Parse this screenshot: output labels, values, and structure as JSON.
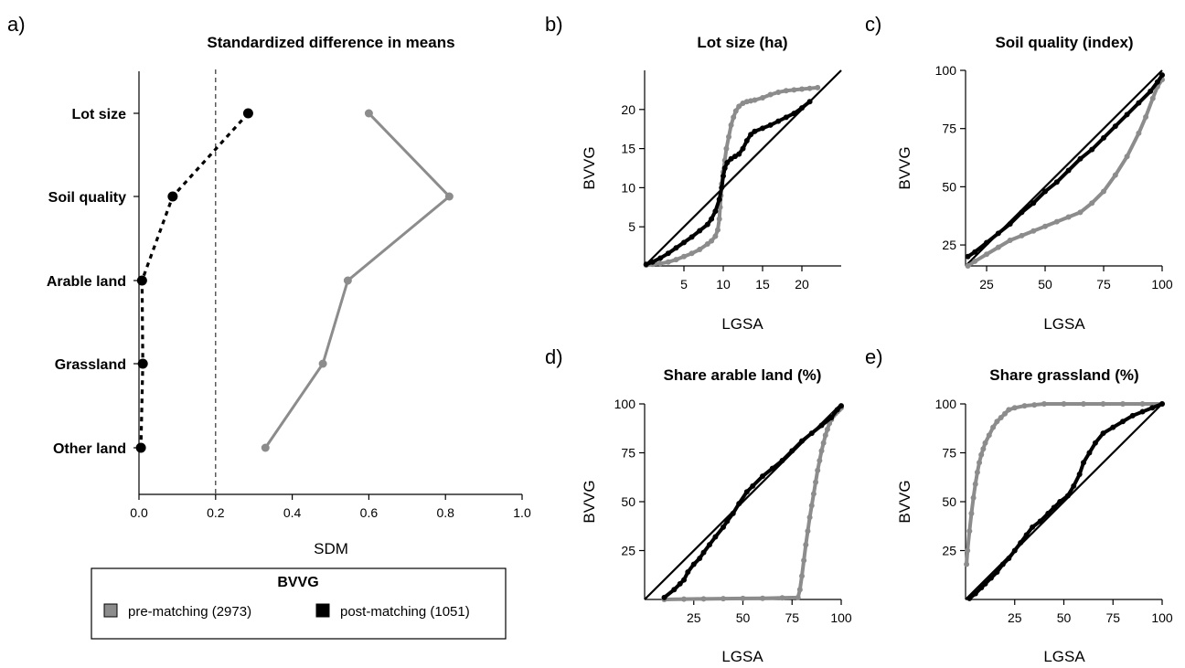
{
  "colors": {
    "pre": "#8c8c8c",
    "post": "#000000"
  },
  "chart_data": [
    {
      "id": "a",
      "panel_label": "a)",
      "type": "line",
      "title": "Standardized difference in means",
      "xlabel": "SDM",
      "ylabel": "",
      "xlim": [
        0,
        1
      ],
      "xticks": [
        0.0,
        0.2,
        0.4,
        0.6,
        0.8,
        1.0
      ],
      "xtick_labels": [
        "0.0",
        "0.2",
        "0.4",
        "0.6",
        "0.8",
        "1.0"
      ],
      "categories": [
        "Lot size",
        "Soil quality",
        "Arable land",
        "Grassland",
        "Other land"
      ],
      "reference_line": 0.2,
      "series": [
        {
          "key": "pre",
          "values": [
            0.6,
            0.81,
            0.545,
            0.48,
            0.33
          ]
        },
        {
          "key": "post",
          "values": [
            0.285,
            0.088,
            0.008,
            0.01,
            0.005
          ]
        }
      ]
    },
    {
      "id": "b",
      "panel_label": "b)",
      "type": "scatter",
      "title": "Lot size (ha)",
      "xlabel": "LGSA",
      "ylabel": "BVVG",
      "xlim": [
        0,
        25
      ],
      "ylim": [
        0,
        25
      ],
      "xticks": [
        5,
        10,
        15,
        20
      ],
      "yticks": [
        5,
        10,
        15,
        20
      ],
      "diagonal": [
        0,
        25
      ],
      "series": [
        {
          "key": "pre",
          "points": [
            [
              0.2,
              0.1
            ],
            [
              1,
              0.2
            ],
            [
              2,
              0.3
            ],
            [
              3,
              0.5
            ],
            [
              4,
              0.8
            ],
            [
              5,
              1.2
            ],
            [
              6,
              1.6
            ],
            [
              7,
              2.1
            ],
            [
              8,
              2.8
            ],
            [
              8.5,
              3.2
            ],
            [
              9,
              3.8
            ],
            [
              9.3,
              4.6
            ],
            [
              9.5,
              6
            ],
            [
              9.6,
              7.5
            ],
            [
              9.7,
              9
            ],
            [
              9.8,
              10.5
            ],
            [
              10,
              12
            ],
            [
              10.2,
              13.5
            ],
            [
              10.4,
              15
            ],
            [
              10.7,
              16.5
            ],
            [
              11,
              18
            ],
            [
              11.3,
              19
            ],
            [
              11.6,
              19.8
            ],
            [
              12,
              20.4
            ],
            [
              12.5,
              20.8
            ],
            [
              13,
              21
            ],
            [
              13.5,
              21.1
            ],
            [
              14,
              21.2
            ],
            [
              15,
              21.5
            ],
            [
              16,
              21.9
            ],
            [
              17,
              22.2
            ],
            [
              18,
              22.4
            ],
            [
              19,
              22.5
            ],
            [
              20,
              22.6
            ],
            [
              21,
              22.7
            ],
            [
              22,
              22.8
            ]
          ]
        },
        {
          "key": "post",
          "points": [
            [
              0.2,
              0.2
            ],
            [
              1,
              0.5
            ],
            [
              2,
              1
            ],
            [
              3,
              1.6
            ],
            [
              4,
              2.3
            ],
            [
              5,
              3
            ],
            [
              6,
              3.7
            ],
            [
              7,
              4.5
            ],
            [
              8,
              5.3
            ],
            [
              8.5,
              6
            ],
            [
              9,
              7
            ],
            [
              9.5,
              8.5
            ],
            [
              9.8,
              10
            ],
            [
              10,
              11.5
            ],
            [
              10.2,
              12.5
            ],
            [
              10.5,
              13.2
            ],
            [
              11,
              13.7
            ],
            [
              11.5,
              14
            ],
            [
              12,
              14.3
            ],
            [
              12.5,
              15
            ],
            [
              13,
              16
            ],
            [
              13.5,
              16.8
            ],
            [
              14,
              17.2
            ],
            [
              15,
              17.6
            ],
            [
              16,
              18
            ],
            [
              17,
              18.5
            ],
            [
              18,
              19
            ],
            [
              19,
              19.5
            ],
            [
              20,
              20.2
            ],
            [
              21,
              21
            ]
          ]
        }
      ]
    },
    {
      "id": "c",
      "panel_label": "c)",
      "type": "scatter",
      "title": "Soil quality (index)",
      "xlabel": "LGSA",
      "ylabel": "BVVG",
      "xlim": [
        16,
        100
      ],
      "ylim": [
        16,
        100
      ],
      "xticks": [
        25,
        50,
        75,
        100
      ],
      "yticks": [
        25,
        50,
        75,
        100
      ],
      "diagonal": [
        16,
        100
      ],
      "series": [
        {
          "key": "pre",
          "points": [
            [
              17,
              16
            ],
            [
              20,
              18
            ],
            [
              25,
              21
            ],
            [
              30,
              24
            ],
            [
              35,
              27
            ],
            [
              40,
              29
            ],
            [
              45,
              31
            ],
            [
              50,
              33
            ],
            [
              55,
              35
            ],
            [
              60,
              37
            ],
            [
              65,
              39
            ],
            [
              70,
              43
            ],
            [
              75,
              48
            ],
            [
              80,
              55
            ],
            [
              85,
              63
            ],
            [
              90,
              73
            ],
            [
              93,
              80
            ],
            [
              96,
              88
            ],
            [
              98,
              93
            ],
            [
              100,
              96
            ]
          ]
        },
        {
          "key": "post",
          "points": [
            [
              17,
              20
            ],
            [
              20,
              22
            ],
            [
              25,
              26
            ],
            [
              30,
              30
            ],
            [
              35,
              34
            ],
            [
              40,
              39
            ],
            [
              45,
              43
            ],
            [
              50,
              48
            ],
            [
              55,
              52
            ],
            [
              60,
              57
            ],
            [
              65,
              62
            ],
            [
              70,
              66
            ],
            [
              75,
              71
            ],
            [
              80,
              76
            ],
            [
              85,
              81
            ],
            [
              90,
              86
            ],
            [
              95,
              91
            ],
            [
              98,
              95
            ],
            [
              100,
              98
            ]
          ]
        }
      ]
    },
    {
      "id": "d",
      "panel_label": "d)",
      "type": "scatter",
      "title": "Share arable land (%)",
      "xlabel": "LGSA",
      "ylabel": "BVVG",
      "xlim": [
        0,
        100
      ],
      "ylim": [
        0,
        100
      ],
      "xticks": [
        25,
        50,
        75,
        100
      ],
      "yticks": [
        25,
        50,
        75,
        100
      ],
      "diagonal": [
        0,
        100
      ],
      "series": [
        {
          "key": "pre",
          "points": [
            [
              10,
              0
            ],
            [
              20,
              0.2
            ],
            [
              30,
              0.3
            ],
            [
              40,
              0.4
            ],
            [
              50,
              0.5
            ],
            [
              60,
              0.6
            ],
            [
              70,
              0.8
            ],
            [
              78,
              1
            ],
            [
              79,
              5
            ],
            [
              80,
              12
            ],
            [
              81,
              20
            ],
            [
              82,
              28
            ],
            [
              83,
              35
            ],
            [
              84,
              42
            ],
            [
              85,
              48
            ],
            [
              86,
              54
            ],
            [
              87,
              60
            ],
            [
              88,
              66
            ],
            [
              89,
              71
            ],
            [
              90,
              76
            ],
            [
              91,
              80
            ],
            [
              92,
              84
            ],
            [
              93,
              87
            ],
            [
              94,
              90
            ],
            [
              95,
              92
            ],
            [
              96,
              94
            ],
            [
              97,
              95
            ],
            [
              98,
              96
            ],
            [
              99,
              97
            ],
            [
              100,
              98
            ]
          ]
        },
        {
          "key": "post",
          "points": [
            [
              10,
              1
            ],
            [
              15,
              5
            ],
            [
              18,
              8
            ],
            [
              20,
              10
            ],
            [
              22,
              14
            ],
            [
              25,
              18
            ],
            [
              28,
              21
            ],
            [
              30,
              24
            ],
            [
              33,
              28
            ],
            [
              36,
              32
            ],
            [
              40,
              37
            ],
            [
              42,
              40
            ],
            [
              45,
              44
            ],
            [
              48,
              49
            ],
            [
              52,
              55
            ],
            [
              55,
              58
            ],
            [
              60,
              63
            ],
            [
              65,
              67
            ],
            [
              70,
              71
            ],
            [
              75,
              76
            ],
            [
              80,
              81
            ],
            [
              85,
              85
            ],
            [
              90,
              89
            ],
            [
              95,
              93
            ],
            [
              98,
              97
            ],
            [
              100,
              99
            ]
          ]
        }
      ]
    },
    {
      "id": "e",
      "panel_label": "e)",
      "type": "scatter",
      "title": "Share grassland (%)",
      "xlabel": "LGSA",
      "ylabel": "BVVG",
      "xlim": [
        0,
        100
      ],
      "ylim": [
        0,
        100
      ],
      "xticks": [
        25,
        50,
        75,
        100
      ],
      "yticks": [
        25,
        50,
        75,
        100
      ],
      "diagonal": [
        0,
        100
      ],
      "series": [
        {
          "key": "pre",
          "points": [
            [
              0.5,
              18
            ],
            [
              1,
              25
            ],
            [
              2,
              35
            ],
            [
              3,
              44
            ],
            [
              4,
              52
            ],
            [
              5,
              59
            ],
            [
              6,
              65
            ],
            [
              7,
              70
            ],
            [
              8,
              74
            ],
            [
              9,
              77
            ],
            [
              10,
              80
            ],
            [
              12,
              84
            ],
            [
              14,
              88
            ],
            [
              16,
              91
            ],
            [
              18,
              93
            ],
            [
              20,
              95
            ],
            [
              22,
              97
            ],
            [
              25,
              98
            ],
            [
              30,
              99
            ],
            [
              35,
              99.5
            ],
            [
              40,
              100
            ],
            [
              50,
              100
            ],
            [
              60,
              100
            ],
            [
              70,
              100
            ],
            [
              80,
              100
            ],
            [
              90,
              100
            ],
            [
              100,
              100
            ]
          ]
        },
        {
          "key": "post",
          "points": [
            [
              2,
              0.5
            ],
            [
              5,
              3
            ],
            [
              8,
              6
            ],
            [
              10,
              8
            ],
            [
              13,
              11
            ],
            [
              16,
              14
            ],
            [
              19,
              18
            ],
            [
              22,
              21
            ],
            [
              25,
              25
            ],
            [
              28,
              29
            ],
            [
              31,
              33
            ],
            [
              34,
              37
            ],
            [
              38,
              40
            ],
            [
              42,
              44
            ],
            [
              45,
              47
            ],
            [
              48,
              50
            ],
            [
              52,
              53
            ],
            [
              55,
              58
            ],
            [
              58,
              64
            ],
            [
              60,
              70
            ],
            [
              63,
              75
            ],
            [
              66,
              80
            ],
            [
              70,
              85
            ],
            [
              75,
              88
            ],
            [
              80,
              91
            ],
            [
              85,
              94
            ],
            [
              90,
              96
            ],
            [
              95,
              98
            ],
            [
              100,
              100
            ]
          ]
        }
      ]
    }
  ],
  "legend": {
    "title": "BVVG",
    "items": [
      {
        "key": "pre",
        "label": "pre-matching (2973)"
      },
      {
        "key": "post",
        "label": "post-matching (1051)"
      }
    ]
  }
}
